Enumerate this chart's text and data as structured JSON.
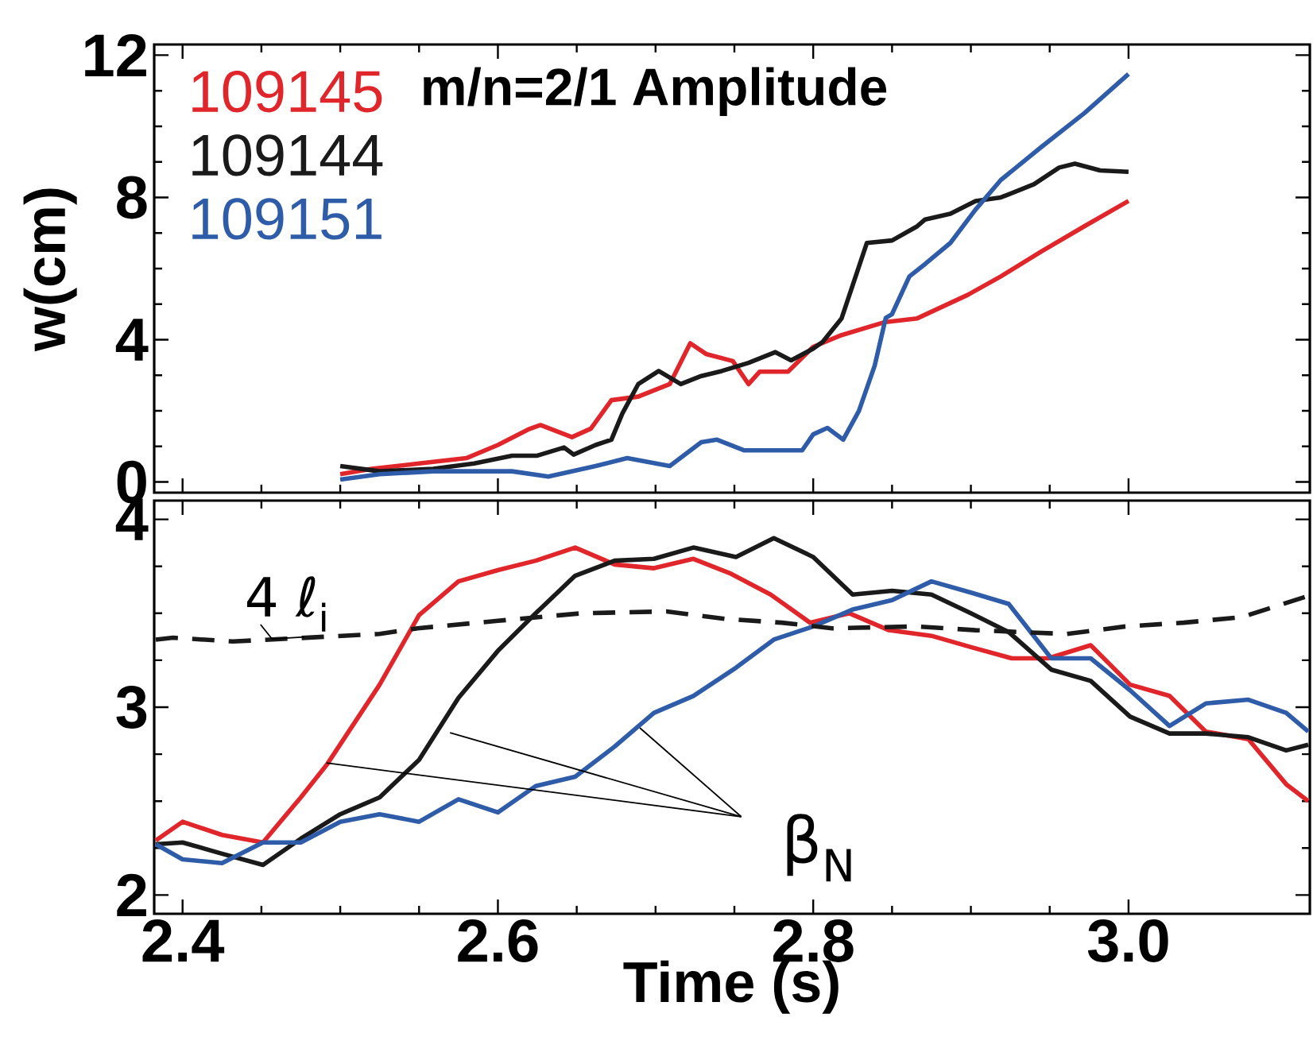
{
  "chart_data": [
    {
      "type": "line",
      "ylabel": "w(cm)",
      "xlim": [
        2.382,
        3.115
      ],
      "ylim": [
        -0.3,
        12.3
      ],
      "xticks": [
        2.4,
        2.6,
        2.8,
        3
      ],
      "yticks": [
        0,
        4,
        8,
        12
      ],
      "tick_labels": "y",
      "legend": "top left",
      "marker": "none",
      "annotations": [
        "m/n=2/1 Amplitude"
      ],
      "series": [
        {
          "name": "109145",
          "color": "#e0262b",
          "x": [
            2.5,
            2.52,
            2.55,
            2.58,
            2.6,
            2.62,
            2.627,
            2.647,
            2.659,
            2.672,
            2.689,
            2.709,
            2.722,
            2.732,
            2.749,
            2.759,
            2.766,
            2.784,
            2.8,
            2.818,
            2.845,
            2.866,
            2.898,
            2.919,
            2.945,
            2.972,
            3.0
          ],
          "values": [
            0.22,
            0.37,
            0.52,
            0.67,
            1.04,
            1.49,
            1.6,
            1.26,
            1.5,
            2.3,
            2.4,
            2.75,
            3.9,
            3.6,
            3.4,
            2.75,
            3.1,
            3.1,
            3.8,
            4.13,
            4.49,
            4.6,
            5.26,
            5.78,
            6.49,
            7.19,
            7.9
          ]
        },
        {
          "name": "109144",
          "color": "#1a1a1a",
          "x": [
            2.5,
            2.525,
            2.559,
            2.585,
            2.609,
            2.625,
            2.642,
            2.648,
            2.662,
            2.672,
            2.679,
            2.689,
            2.702,
            2.716,
            2.729,
            2.742,
            2.759,
            2.776,
            2.786,
            2.8,
            2.806,
            2.818,
            2.834,
            2.85,
            2.866,
            2.871,
            2.887,
            2.903,
            2.919,
            2.94,
            2.956,
            2.966,
            2.982,
            3.0
          ],
          "values": [
            0.45,
            0.3,
            0.37,
            0.52,
            0.74,
            0.74,
            0.97,
            0.77,
            1.04,
            1.19,
            1.93,
            2.75,
            3.12,
            2.75,
            2.98,
            3.12,
            3.35,
            3.65,
            3.42,
            3.75,
            3.94,
            4.6,
            6.72,
            6.79,
            7.19,
            7.38,
            7.54,
            7.9,
            8.0,
            8.37,
            8.84,
            8.95,
            8.76,
            8.72
          ]
        },
        {
          "name": "109151",
          "color": "#2f5ca8",
          "x": [
            2.5,
            2.525,
            2.559,
            2.585,
            2.609,
            2.632,
            2.662,
            2.682,
            2.709,
            2.729,
            2.739,
            2.756,
            2.776,
            2.793,
            2.8,
            2.809,
            2.819,
            2.829,
            2.839,
            2.846,
            2.85,
            2.861,
            2.871,
            2.887,
            2.903,
            2.919,
            2.945,
            2.972,
            3.0
          ],
          "values": [
            0.07,
            0.22,
            0.3,
            0.3,
            0.3,
            0.15,
            0.45,
            0.67,
            0.45,
            1.12,
            1.19,
            0.89,
            0.89,
            0.89,
            1.34,
            1.52,
            1.19,
            2.0,
            3.27,
            4.61,
            4.72,
            5.78,
            6.13,
            6.72,
            7.66,
            8.49,
            9.43,
            10.37,
            11.47
          ]
        }
      ]
    },
    {
      "type": "line",
      "xlabel": "Time (s)",
      "xlim": [
        2.382,
        3.115
      ],
      "ylim": [
        1.9,
        4.1
      ],
      "xticks": [
        2.4,
        2.6,
        2.8,
        {
          "value": 3.0,
          "label": "3.0"
        }
      ],
      "yticks": [
        2,
        3,
        4
      ],
      "marker": "none",
      "annotations": [
        "4 ℓ$_{i}$",
        {
          "text": "β$_{N}$",
          "x": 2.69,
          "y": 2.89
        }
      ],
      "series": [
        {
          "color": "#e0262b",
          "x": [
            2.383,
            2.4,
            2.425,
            2.451,
            2.475,
            2.492,
            2.525,
            2.55,
            2.575,
            2.6,
            2.624,
            2.649,
            2.674,
            2.699,
            2.724,
            2.748,
            2.773,
            2.798,
            2.823,
            2.848,
            2.875,
            2.9,
            2.926,
            2.949,
            2.976,
            3.001,
            3.026,
            3.049,
            3.076,
            3.1,
            3.114
          ],
          "values": [
            2.29,
            2.39,
            2.32,
            2.28,
            2.52,
            2.7,
            3.12,
            3.49,
            3.67,
            3.73,
            3.78,
            3.85,
            3.76,
            3.74,
            3.79,
            3.71,
            3.6,
            3.45,
            3.5,
            3.41,
            3.38,
            3.32,
            3.26,
            3.26,
            3.33,
            3.12,
            3.06,
            2.87,
            2.83,
            2.59,
            2.5
          ]
        },
        {
          "color": "#1a1a1a",
          "x": [
            2.383,
            2.4,
            2.425,
            2.451,
            2.475,
            2.5,
            2.525,
            2.55,
            2.575,
            2.6,
            2.624,
            2.649,
            2.674,
            2.699,
            2.724,
            2.751,
            2.775,
            2.8,
            2.825,
            2.85,
            2.875,
            2.9,
            2.924,
            2.951,
            2.976,
            3.001,
            3.026,
            3.049,
            3.076,
            3.1,
            3.114
          ],
          "values": [
            2.27,
            2.28,
            2.22,
            2.16,
            2.3,
            2.43,
            2.52,
            2.72,
            3.05,
            3.3,
            3.5,
            3.7,
            3.78,
            3.79,
            3.85,
            3.8,
            3.9,
            3.8,
            3.6,
            3.62,
            3.6,
            3.5,
            3.4,
            3.2,
            3.14,
            2.95,
            2.86,
            2.86,
            2.84,
            2.77,
            2.8
          ]
        },
        {
          "color": "#2f5ca8",
          "x": [
            2.383,
            2.4,
            2.425,
            2.451,
            2.475,
            2.5,
            2.525,
            2.55,
            2.575,
            2.6,
            2.624,
            2.649,
            2.674,
            2.699,
            2.724,
            2.751,
            2.775,
            2.8,
            2.825,
            2.85,
            2.875,
            2.9,
            2.924,
            2.951,
            2.976,
            3.001,
            3.026,
            3.049,
            3.076,
            3.1,
            3.114
          ],
          "values": [
            2.27,
            2.19,
            2.17,
            2.28,
            2.28,
            2.39,
            2.43,
            2.39,
            2.51,
            2.44,
            2.58,
            2.63,
            2.79,
            2.97,
            3.06,
            3.21,
            3.36,
            3.43,
            3.52,
            3.57,
            3.67,
            3.61,
            3.55,
            3.26,
            3.26,
            3.09,
            2.9,
            3.02,
            3.04,
            2.97,
            2.87
          ]
        },
        {
          "color": "#1a1a1a",
          "line_style": "dashed",
          "x": [
            2.383,
            2.394,
            2.432,
            2.525,
            2.549,
            2.6,
            2.653,
            2.707,
            2.744,
            2.78,
            2.812,
            2.866,
            2.903,
            2.961,
            2.998,
            3.035,
            3.072,
            3.113
          ],
          "values": [
            3.36,
            3.37,
            3.35,
            3.39,
            3.42,
            3.46,
            3.5,
            3.51,
            3.47,
            3.45,
            3.42,
            3.43,
            3.41,
            3.39,
            3.43,
            3.45,
            3.48,
            3.59
          ]
        }
      ]
    }
  ]
}
